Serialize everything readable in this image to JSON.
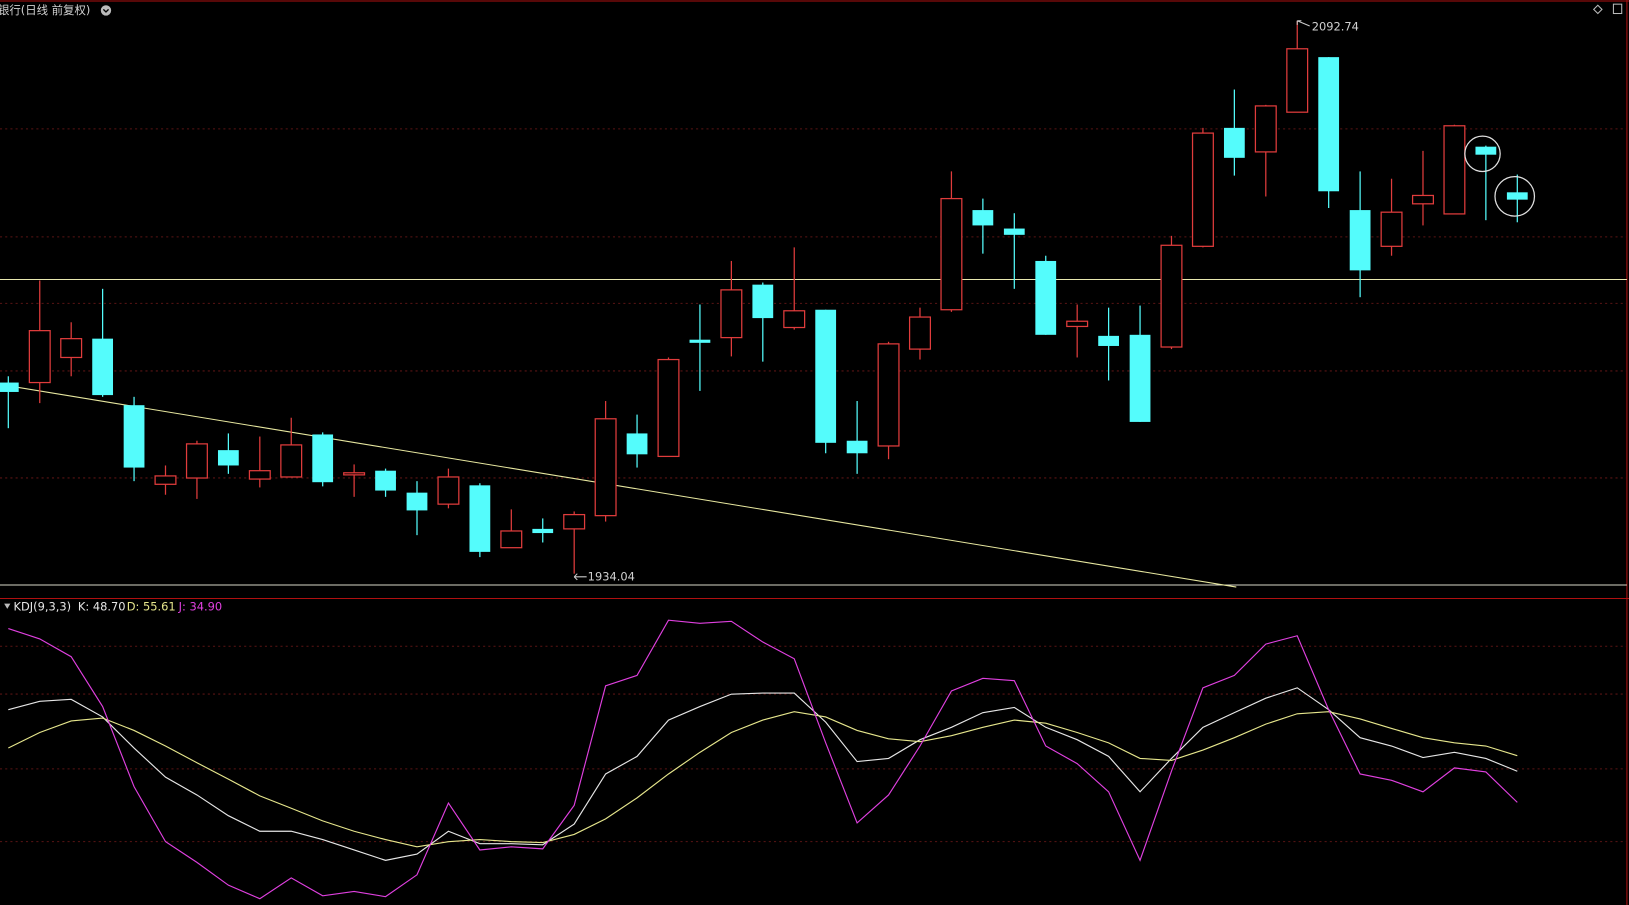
{
  "chart_data": [
    {
      "type": "candlestick",
      "title": "银行(日线 前复权)",
      "up_color": "#e03c3c",
      "down_color": "#54fcfc",
      "ylim": [
        1930.8,
        2098.7
      ],
      "high_label": "2092.74",
      "low_label": "1934.04",
      "open": [
        1988.9,
        1988.9,
        1996.1,
        2001.5,
        1982.4,
        1959.7,
        1961.5,
        1969.5,
        1961.2,
        1961.8,
        1974.0,
        1962.4,
        1963.6,
        1957.3,
        1954.0,
        1959.4,
        1941.5,
        1946.9,
        1946.9,
        1950.7,
        1974.3,
        1967.7,
        2001.2,
        2001.8,
        2017.0,
        2004.7,
        2009.8,
        1972.2,
        1970.7,
        1998.5,
        2009.8,
        2038.4,
        2033.1,
        2023.8,
        2005.0,
        2002.3,
        2002.6,
        1999.1,
        2028.0,
        2062.0,
        2055.1,
        2066.5,
        2082.3,
        2038.4,
        2028.0,
        2040.2,
        2037.3,
        2056.6,
        2043.5
      ],
      "high": [
        1990.7,
        2018.2,
        2006.2,
        2015.8,
        1984.8,
        1965.1,
        1972.2,
        1974.3,
        1973.4,
        1978.8,
        1974.6,
        1965.4,
        1964.2,
        1960.6,
        1964.2,
        1960.0,
        1952.5,
        1949.9,
        1951.9,
        1983.6,
        1979.7,
        1996.1,
        2011.3,
        2023.8,
        2017.6,
        2027.7,
        2009.8,
        1983.6,
        2000.6,
        2010.4,
        2049.5,
        2041.7,
        2037.5,
        2025.3,
        2011.3,
        2010.4,
        2011.0,
        2031.0,
        2062.0,
        2073.0,
        2068.6,
        2092.74,
        2082.3,
        2049.5,
        2047.4,
        2055.4,
        2062.9,
        2056.9,
        2048.6
      ],
      "low": [
        1975.8,
        1983.0,
        1990.7,
        1984.8,
        1960.6,
        1956.7,
        1955.5,
        1962.7,
        1958.8,
        1961.8,
        1959.1,
        1956.1,
        1956.1,
        1945.1,
        1952.8,
        1938.8,
        1941.5,
        1943.0,
        1934.04,
        1949.0,
        1964.5,
        1967.7,
        1986.5,
        1996.4,
        1994.9,
        2004.1,
        1968.6,
        1962.7,
        1966.9,
        1995.5,
        2009.2,
        2025.9,
        2015.8,
        2002.6,
        1996.1,
        1989.5,
        1977.6,
        1998.5,
        2027.7,
        2048.3,
        2042.3,
        2066.5,
        2039.0,
        2013.4,
        2025.3,
        2034.0,
        2037.3,
        2035.5,
        2034.9
      ],
      "close": [
        1986.2,
        2003.8,
        2001.5,
        1985.3,
        1964.5,
        1962.1,
        1971.3,
        1965.1,
        1963.6,
        1971.0,
        1960.3,
        1963.0,
        1957.9,
        1952.2,
        1961.8,
        1940.3,
        1946.3,
        1945.7,
        1951.0,
        1978.5,
        1968.3,
        1995.5,
        2000.3,
        2015.5,
        2007.4,
        2009.5,
        1971.6,
        1968.6,
        2000.0,
        2007.7,
        2041.7,
        2034.0,
        2031.3,
        2002.6,
        2006.5,
        1999.4,
        1977.6,
        2028.3,
        2060.5,
        2053.4,
        2068.3,
        2084.7,
        2043.8,
        2021.1,
        2037.8,
        2042.6,
        2062.6,
        2054.3,
        2041.4
      ]
    },
    {
      "type": "line",
      "title": "KDJ(9,3,3)",
      "ylim": [
        -10.6,
        124.4
      ],
      "series": [
        {
          "name": "K",
          "label": "K: 48.70",
          "color": "#e6e6e6",
          "values": [
            76.0,
            79.7,
            80.6,
            72.8,
            59.0,
            46.1,
            38.2,
            29.0,
            22.1,
            22.1,
            18.4,
            13.8,
            9.2,
            12.0,
            22.1,
            16.6,
            16.6,
            16.1,
            25.3,
            47.5,
            55.3,
            71.4,
            77.4,
            82.9,
            83.4,
            83.4,
            70.5,
            53.0,
            54.4,
            62.7,
            68.2,
            74.7,
            77.0,
            68.2,
            62.7,
            55.3,
            39.6,
            54.4,
            68.2,
            74.7,
            81.1,
            85.7,
            76.0,
            63.6,
            59.9,
            54.8,
            57.1,
            54.4,
            48.7
          ]
        },
        {
          "name": "D",
          "label": "D: 55.61",
          "color": "#e6e68c",
          "values": [
            59.0,
            65.9,
            71.0,
            72.3,
            66.8,
            59.9,
            52.5,
            45.2,
            37.8,
            32.3,
            26.7,
            22.1,
            18.4,
            15.2,
            17.5,
            18.4,
            17.5,
            17.1,
            20.7,
            27.6,
            36.9,
            47.5,
            57.1,
            65.9,
            71.4,
            75.1,
            72.8,
            66.8,
            63.1,
            61.8,
            64.5,
            68.2,
            71.4,
            70.0,
            65.9,
            61.3,
            54.4,
            53.5,
            58.1,
            63.6,
            69.6,
            74.2,
            75.1,
            71.9,
            67.7,
            63.6,
            61.3,
            59.9,
            55.61
          ]
        },
        {
          "name": "J",
          "label": "J: 34.90",
          "color": "#e040e0",
          "values": [
            112.0,
            107.4,
            99.5,
            77.4,
            41.9,
            17.5,
            8.3,
            -1.8,
            -7.8,
            1.4,
            -6.5,
            -4.6,
            -6.9,
            2.8,
            34.6,
            13.8,
            15.2,
            14.3,
            33.6,
            86.6,
            91.2,
            115.7,
            114.3,
            115.2,
            106.0,
            98.6,
            61.3,
            25.8,
            38.2,
            59.9,
            84.3,
            89.9,
            88.9,
            59.9,
            52.1,
            39.6,
            9.2,
            48.8,
            85.7,
            91.2,
            105.1,
            108.8,
            76.0,
            47.5,
            44.7,
            39.6,
            50.2,
            48.4,
            34.9
          ]
        }
      ]
    }
  ]
}
